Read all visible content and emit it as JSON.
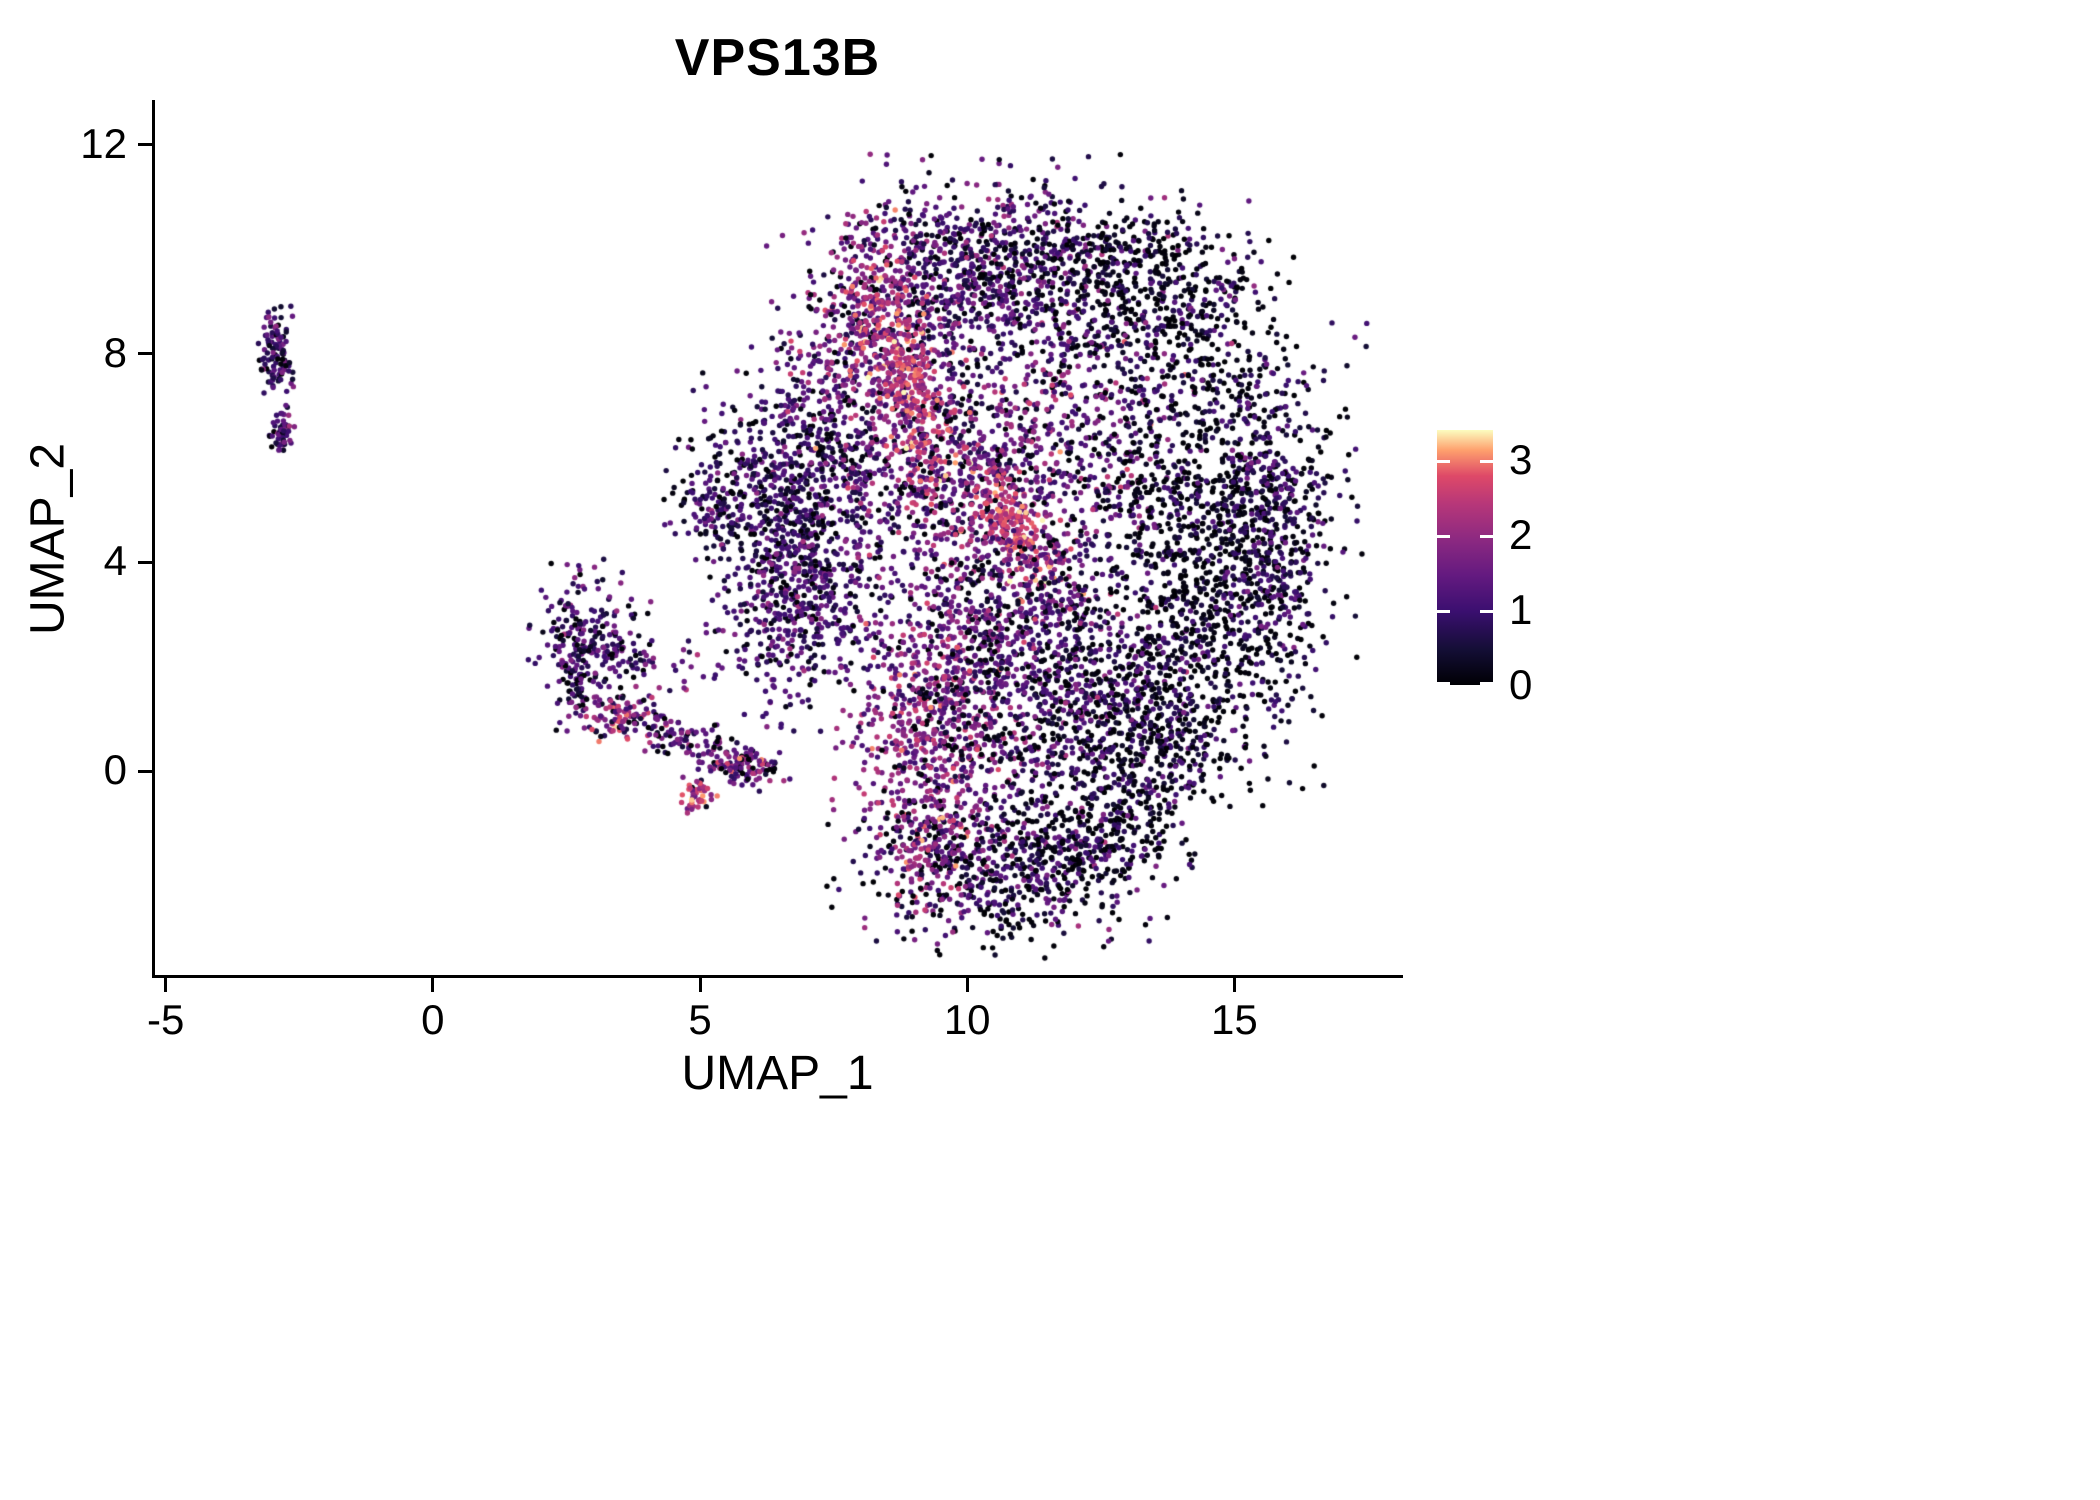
{
  "title": "VPS13B",
  "axes": {
    "x": {
      "label": "UMAP_1",
      "tick_labels": [
        "-5",
        "0",
        "5",
        "10",
        "15"
      ],
      "tick_values": [
        -5,
        0,
        5,
        10,
        15
      ],
      "range": [
        -5.2,
        18.1
      ]
    },
    "y": {
      "label": "UMAP_2",
      "tick_labels": [
        "12",
        "8",
        "4",
        "0"
      ],
      "tick_values": [
        12,
        8,
        4,
        0
      ],
      "range": [
        -3.9,
        12.8
      ]
    }
  },
  "colorbar": {
    "tick_labels": [
      "3",
      "2",
      "1",
      "0"
    ],
    "tick_values": [
      3,
      2,
      1,
      0
    ],
    "range": [
      0,
      3.4
    ],
    "colormap_name": "magma"
  },
  "chart_data": {
    "type": "scatter",
    "title": "VPS13B",
    "xlabel": "UMAP_1",
    "ylabel": "UMAP_2",
    "xlim": [
      -5.2,
      18.1
    ],
    "ylim": [
      -3.9,
      12.8
    ],
    "grid": false,
    "legend_position": "right",
    "point_radius_px": 2.7,
    "n_points_approx": 10400,
    "color_scale": {
      "name": "magma",
      "domain": [
        0,
        3.4
      ],
      "stops": [
        [
          0.0,
          "#000004"
        ],
        [
          0.14,
          "#140e36"
        ],
        [
          0.29,
          "#3b0f70"
        ],
        [
          0.43,
          "#641a80"
        ],
        [
          0.57,
          "#8c2981"
        ],
        [
          0.71,
          "#b73779"
        ],
        [
          0.82,
          "#de4968"
        ],
        [
          0.92,
          "#fe9f6d"
        ],
        [
          1.0,
          "#fcfdbf"
        ]
      ]
    },
    "clusters": [
      {
        "name": "left-islet-upper",
        "cx": -2.92,
        "cy": 8.0,
        "sx": 0.16,
        "sy": 0.45,
        "rot": 0,
        "n": 110,
        "expr_mean": 1.0,
        "expr_sd": 0.5,
        "dark_frac": 0.1
      },
      {
        "name": "left-islet-lower",
        "cx": -2.8,
        "cy": 6.45,
        "sx": 0.12,
        "sy": 0.24,
        "rot": 0,
        "n": 55,
        "expr_mean": 1.1,
        "expr_sd": 0.5,
        "dark_frac": 0.08
      },
      {
        "name": "lower-left-body",
        "cx": 2.95,
        "cy": 2.3,
        "sx": 0.5,
        "sy": 0.75,
        "rot": 0,
        "n": 300,
        "expr_mean": 1.0,
        "expr_sd": 0.55,
        "dark_frac": 0.12
      },
      {
        "name": "lower-left-hot-spot",
        "cx": 3.4,
        "cy": 1.05,
        "sx": 0.35,
        "sy": 0.2,
        "rot": 0,
        "n": 40,
        "expr_mean": 2.2,
        "expr_sd": 0.5,
        "dark_frac": 0.03
      },
      {
        "name": "lower-left-tail",
        "cx": 4.6,
        "cy": 0.65,
        "sx": 0.9,
        "sy": 0.22,
        "rot": -21,
        "n": 150,
        "expr_mean": 1.2,
        "expr_sd": 0.7,
        "dark_frac": 0.1
      },
      {
        "name": "tail-end",
        "cx": 5.8,
        "cy": 0.1,
        "sx": 0.35,
        "sy": 0.17,
        "rot": 0,
        "n": 90,
        "expr_mean": 1.5,
        "expr_sd": 0.8,
        "dark_frac": 0.08
      },
      {
        "name": "tail-droplet",
        "cx": 4.95,
        "cy": -0.5,
        "sx": 0.17,
        "sy": 0.2,
        "rot": 0,
        "n": 45,
        "expr_mean": 2.2,
        "expr_sd": 0.7,
        "dark_frac": 0.04
      },
      {
        "name": "bridge-sparse",
        "cx": 4.4,
        "cy": 2.0,
        "sx": 0.55,
        "sy": 0.35,
        "rot": 0,
        "n": 25,
        "expr_mean": 1.1,
        "expr_sd": 0.6,
        "dark_frac": 0.15
      },
      {
        "name": "main-left-spur",
        "cx": 5.3,
        "cy": 5.2,
        "sx": 0.45,
        "sy": 0.55,
        "rot": 0,
        "n": 130,
        "expr_mean": 1.0,
        "expr_sd": 0.5,
        "dark_frac": 0.15
      },
      {
        "name": "main-left-band",
        "cx": 6.9,
        "cy": 5.1,
        "sx": 0.85,
        "sy": 1.35,
        "rot": 0,
        "n": 850,
        "expr_mean": 0.95,
        "expr_sd": 0.5,
        "dark_frac": 0.18
      },
      {
        "name": "main-left-lower",
        "cx": 6.8,
        "cy": 3.0,
        "sx": 0.7,
        "sy": 0.9,
        "rot": 0,
        "n": 280,
        "expr_mean": 1.1,
        "expr_sd": 0.55,
        "dark_frac": 0.15
      },
      {
        "name": "main-top-lobe",
        "cx": 10.4,
        "cy": 9.7,
        "sx": 1.35,
        "sy": 0.85,
        "rot": 0,
        "n": 850,
        "expr_mean": 1.1,
        "expr_sd": 0.65,
        "dark_frac": 0.2
      },
      {
        "name": "main-top-right-dark",
        "cx": 13.2,
        "cy": 9.2,
        "sx": 1.15,
        "sy": 0.85,
        "rot": 0,
        "n": 550,
        "expr_mean": 0.65,
        "expr_sd": 0.5,
        "dark_frac": 0.45
      },
      {
        "name": "main-top-left",
        "cx": 8.2,
        "cy": 8.4,
        "sx": 0.8,
        "sy": 0.95,
        "rot": 0,
        "n": 380,
        "expr_mean": 1.5,
        "expr_sd": 0.7,
        "dark_frac": 0.06
      },
      {
        "name": "main-center",
        "cx": 9.9,
        "cy": 5.9,
        "sx": 1.5,
        "sy": 1.5,
        "rot": 0,
        "n": 1000,
        "expr_mean": 1.3,
        "expr_sd": 0.65,
        "dark_frac": 0.15
      },
      {
        "name": "hot-streak",
        "cx": 8.9,
        "cy": 7.4,
        "sx": 0.32,
        "sy": 1.45,
        "rot": 16,
        "n": 400,
        "expr_mean": 2.4,
        "expr_sd": 0.5,
        "dark_frac": 0.02
      },
      {
        "name": "hot-patch",
        "cx": 10.85,
        "cy": 4.7,
        "sx": 0.28,
        "sy": 0.75,
        "rot": 30,
        "n": 230,
        "expr_mean": 2.5,
        "expr_sd": 0.5,
        "dark_frac": 0.02
      },
      {
        "name": "mid-right-warm",
        "cx": 12.2,
        "cy": 6.4,
        "sx": 1.1,
        "sy": 1.1,
        "rot": 0,
        "n": 200,
        "expr_mean": 1.7,
        "expr_sd": 0.6,
        "dark_frac": 0.08
      },
      {
        "name": "right-dark-mass",
        "cx": 14.5,
        "cy": 4.6,
        "sx": 1.2,
        "sy": 2.2,
        "rot": 0,
        "n": 1400,
        "expr_mean": 0.6,
        "expr_sd": 0.5,
        "dark_frac": 0.45
      },
      {
        "name": "right-rim",
        "cx": 15.7,
        "cy": 4.6,
        "sx": 0.45,
        "sy": 1.6,
        "rot": 0,
        "n": 300,
        "expr_mean": 0.9,
        "expr_sd": 0.45,
        "dark_frac": 0.2
      },
      {
        "name": "mid-lower",
        "cx": 11.0,
        "cy": 2.9,
        "sx": 1.2,
        "sy": 1.0,
        "rot": 0,
        "n": 480,
        "expr_mean": 1.2,
        "expr_sd": 0.6,
        "dark_frac": 0.2
      },
      {
        "name": "bottom-pink-band",
        "cx": 9.4,
        "cy": 0.9,
        "sx": 0.8,
        "sy": 1.2,
        "rot": 0,
        "n": 600,
        "expr_mean": 1.8,
        "expr_sd": 0.55,
        "dark_frac": 0.06
      },
      {
        "name": "bottom-broad",
        "cx": 11.4,
        "cy": 1.3,
        "sx": 1.4,
        "sy": 1.0,
        "rot": 0,
        "n": 550,
        "expr_mean": 1.0,
        "expr_sd": 0.6,
        "dark_frac": 0.28
      },
      {
        "name": "bottom-right",
        "cx": 13.4,
        "cy": 0.8,
        "sx": 0.9,
        "sy": 0.85,
        "rot": 0,
        "n": 420,
        "expr_mean": 0.8,
        "expr_sd": 0.5,
        "dark_frac": 0.35
      },
      {
        "name": "bottom-lobe",
        "cx": 10.6,
        "cy": -1.8,
        "sx": 1.3,
        "sy": 0.75,
        "rot": 0,
        "n": 600,
        "expr_mean": 1.0,
        "expr_sd": 0.65,
        "dark_frac": 0.28
      },
      {
        "name": "bottom-lobe-right",
        "cx": 12.5,
        "cy": -1.2,
        "sx": 0.8,
        "sy": 0.65,
        "rot": 0,
        "n": 260,
        "expr_mean": 0.7,
        "expr_sd": 0.5,
        "dark_frac": 0.4
      },
      {
        "name": "bottom-lobe-hot",
        "cx": 9.3,
        "cy": -1.6,
        "sx": 0.5,
        "sy": 0.6,
        "rot": 0,
        "n": 120,
        "expr_mean": 1.9,
        "expr_sd": 0.6,
        "dark_frac": 0.05
      },
      {
        "name": "outlier-right",
        "cx": 15.35,
        "cy": 9.3,
        "sx": 0.02,
        "sy": 0.02,
        "rot": 0,
        "n": 1,
        "expr_mean": 2.0,
        "expr_sd": 0.01,
        "dark_frac": 0
      }
    ]
  }
}
